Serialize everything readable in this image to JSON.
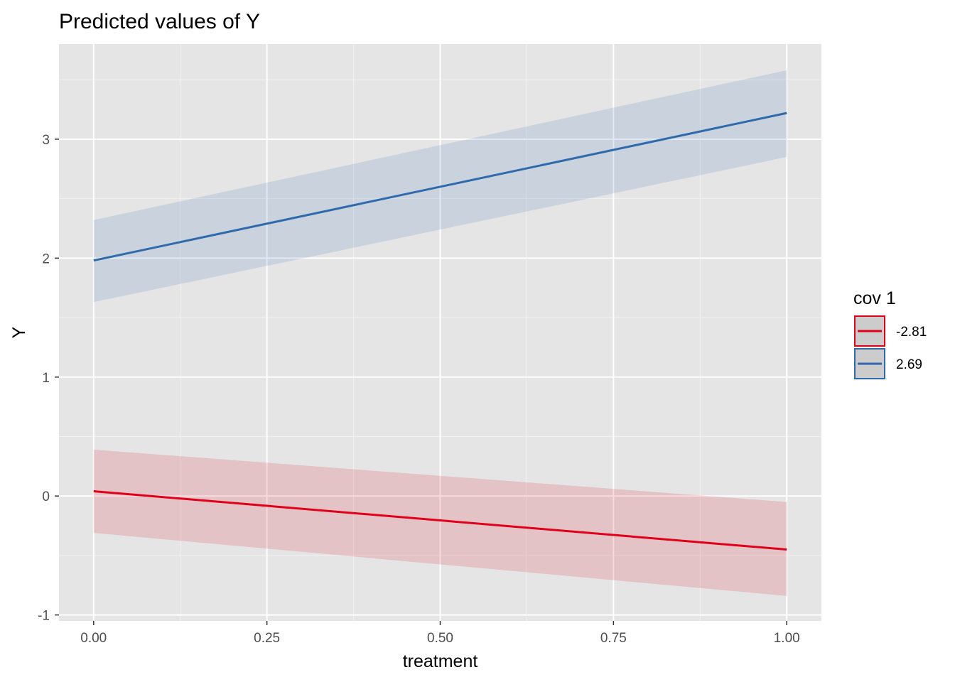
{
  "chart_data": {
    "type": "line",
    "title": "Predicted values of Y",
    "xlabel": "treatment",
    "ylabel": "Y",
    "xlim": [
      -0.05,
      1.05
    ],
    "ylim": [
      -1.05,
      3.8
    ],
    "x_ticks": [
      0.0,
      0.25,
      0.5,
      0.75,
      1.0
    ],
    "x_tick_labels": [
      "0.00",
      "0.25",
      "0.50",
      "0.75",
      "1.00"
    ],
    "y_ticks": [
      -1,
      0,
      1,
      2,
      3
    ],
    "y_tick_labels": [
      "-1",
      "0",
      "1",
      "2",
      "3"
    ],
    "grid": true,
    "background": "#e5e5e5",
    "legend": {
      "title": "cov 1",
      "placement": "right"
    },
    "series": [
      {
        "name": "-2.81",
        "color": "#e0001a",
        "x": [
          0.0,
          1.0
        ],
        "y": [
          0.04,
          -0.45
        ],
        "ci_low": [
          -0.31,
          -0.84
        ],
        "ci_high": [
          0.39,
          -0.05
        ]
      },
      {
        "name": "2.69",
        "color": "#2f6aad",
        "x": [
          0.0,
          1.0
        ],
        "y": [
          1.98,
          3.22
        ],
        "ci_low": [
          1.63,
          2.85
        ],
        "ci_high": [
          2.32,
          3.58
        ]
      }
    ]
  }
}
